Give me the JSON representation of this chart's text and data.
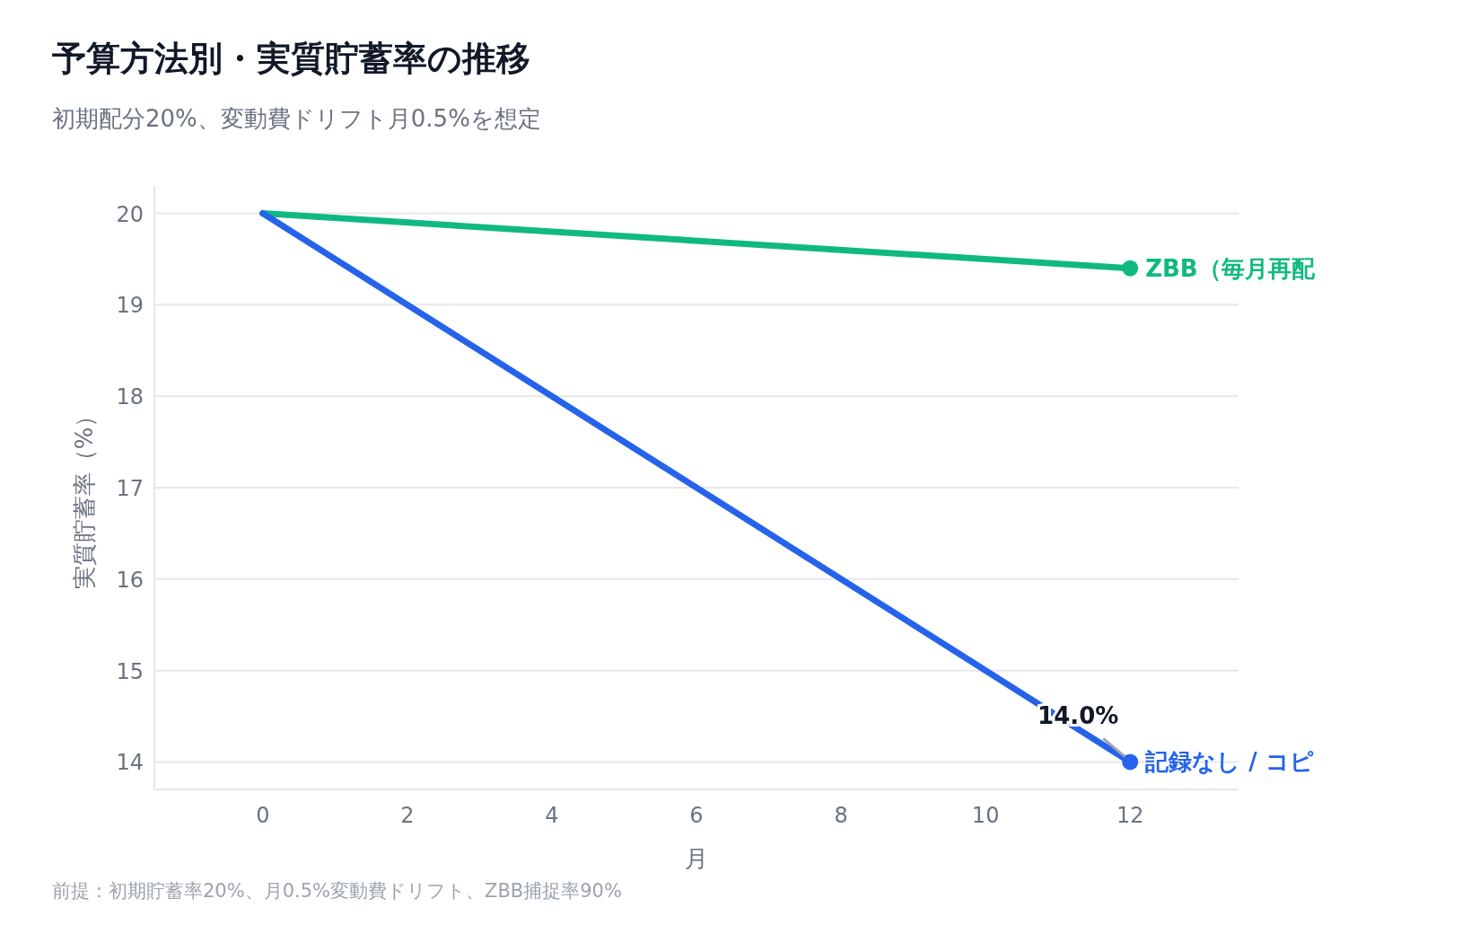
{
  "chart_data": {
    "type": "line",
    "title": "予算方法別・実質貯蓄率の推移",
    "subtitle": "初期配分20%、変動費ドリフト月0.5%を想定",
    "xlabel": "月",
    "ylabel": "実質貯蓄率（%）",
    "x": [
      0,
      12
    ],
    "series": [
      {
        "name": "ZBB（毎月再配",
        "color": "#10b981",
        "values": [
          20,
          19.4
        ]
      },
      {
        "name": "記録なし / コピ",
        "color": "#2563eb",
        "values": [
          20,
          14
        ]
      }
    ],
    "xlim": [
      -1.5,
      13.5
    ],
    "xticks": [
      0,
      2,
      4,
      6,
      8,
      10,
      12
    ],
    "ylim": [
      13.7,
      20.3
    ],
    "yticks": [
      14,
      15,
      16,
      17,
      18,
      19,
      20
    ],
    "grid": "y",
    "marker": "circle",
    "annotations": [
      {
        "text": "14.0%",
        "x": 12,
        "y": 14
      },
      "前提：初期貯蓄率20%、月0.5%変動費ドリフト、ZBB捕捉率90%"
    ]
  }
}
